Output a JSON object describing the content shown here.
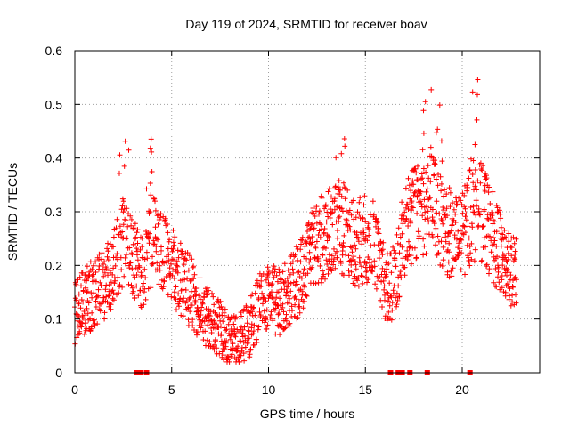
{
  "chart_data": {
    "type": "scatter",
    "title": "Day 119 of 2024, SRMTID for receiver boav",
    "xlabel": "GPS time / hours",
    "ylabel": "SRMTID / TECUs",
    "xlim": [
      0,
      24
    ],
    "ylim": [
      0,
      0.6
    ],
    "x_ticks": [
      0,
      5,
      10,
      15,
      20
    ],
    "x_tick_labels": [
      "0",
      "5",
      "10",
      "15",
      "20"
    ],
    "y_ticks": [
      0,
      0.1,
      0.2,
      0.3,
      0.4,
      0.5,
      0.6
    ],
    "y_tick_labels": [
      "0",
      "0.1",
      "0.2",
      "0.3",
      "0.4",
      "0.5",
      "0.6"
    ],
    "grid": true,
    "marker": "+",
    "color": "#ff0000",
    "trend": {
      "x": [
        0,
        0.5,
        1,
        1.5,
        2,
        2.5,
        3,
        3.5,
        4,
        4.5,
        5,
        5.5,
        6,
        6.5,
        7,
        7.5,
        8,
        8.5,
        9,
        9.5,
        10,
        10.5,
        11,
        11.5,
        12,
        12.5,
        13,
        13.5,
        14,
        14.5,
        15,
        15.5,
        16,
        16.5,
        17,
        17.5,
        18,
        18.5,
        19,
        19.5,
        20,
        20.5,
        21,
        21.5,
        22,
        22.5,
        22.8
      ],
      "y": [
        0.11,
        0.13,
        0.15,
        0.16,
        0.2,
        0.24,
        0.22,
        0.18,
        0.25,
        0.22,
        0.2,
        0.17,
        0.15,
        0.12,
        0.1,
        0.08,
        0.06,
        0.06,
        0.08,
        0.12,
        0.15,
        0.13,
        0.15,
        0.17,
        0.21,
        0.24,
        0.26,
        0.28,
        0.26,
        0.24,
        0.25,
        0.24,
        0.16,
        0.17,
        0.26,
        0.3,
        0.3,
        0.32,
        0.28,
        0.25,
        0.25,
        0.3,
        0.3,
        0.26,
        0.22,
        0.2,
        0.18
      ]
    },
    "spread": [
      {
        "from": 2.3,
        "to": 2.8,
        "max": 0.45
      },
      {
        "from": 3.7,
        "to": 4.0,
        "max": 0.46
      },
      {
        "from": 13.4,
        "to": 14.0,
        "max": 0.45
      },
      {
        "from": 17.8,
        "to": 19.0,
        "max": 0.53
      },
      {
        "from": 20.4,
        "to": 20.8,
        "max": 0.55
      }
    ],
    "zero_markers_x": [
      3.2,
      3.4,
      3.7,
      16.3,
      16.7,
      16.9,
      17.3,
      18.2,
      20.4
    ]
  }
}
